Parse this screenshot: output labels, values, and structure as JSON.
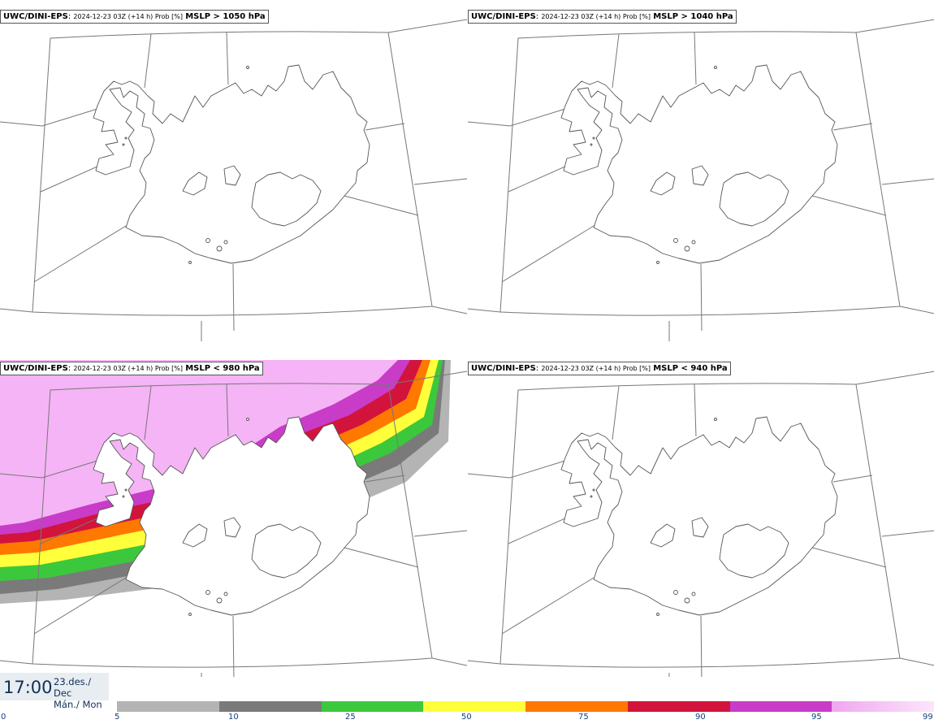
{
  "panels": [
    {
      "model": "UWC/DINI-EPS",
      "run": "2024-12-23 03Z (+14 h) Prob [%]",
      "param": "MSLP > 1050 hPa"
    },
    {
      "model": "UWC/DINI-EPS",
      "run": "2024-12-23 03Z (+14 h) Prob [%]",
      "param": "MSLP > 1040 hPa"
    },
    {
      "model": "UWC/DINI-EPS",
      "run": "2024-12-23 03Z (+14 h) Prob [%]",
      "param": "MSLP < 980 hPa"
    },
    {
      "model": "UWC/DINI-EPS",
      "run": "2024-12-23 03Z (+14 h) Prob [%]",
      "param": "MSLP < 940 hPa"
    }
  ],
  "footer": {
    "time": "17:00",
    "date_line1": "23.des./ Dec",
    "date_line2": "Mán./ Mon"
  },
  "legend": {
    "ticks": [
      "0",
      "5",
      "10",
      "25",
      "50",
      "75",
      "90",
      "95",
      "99"
    ],
    "colors": [
      "#b4b4b4",
      "#7a7a7a",
      "#3cc83c",
      "#ffff3c",
      "#ff7800",
      "#d2143c",
      "#c83cc8",
      "#f5b4f5"
    ]
  }
}
